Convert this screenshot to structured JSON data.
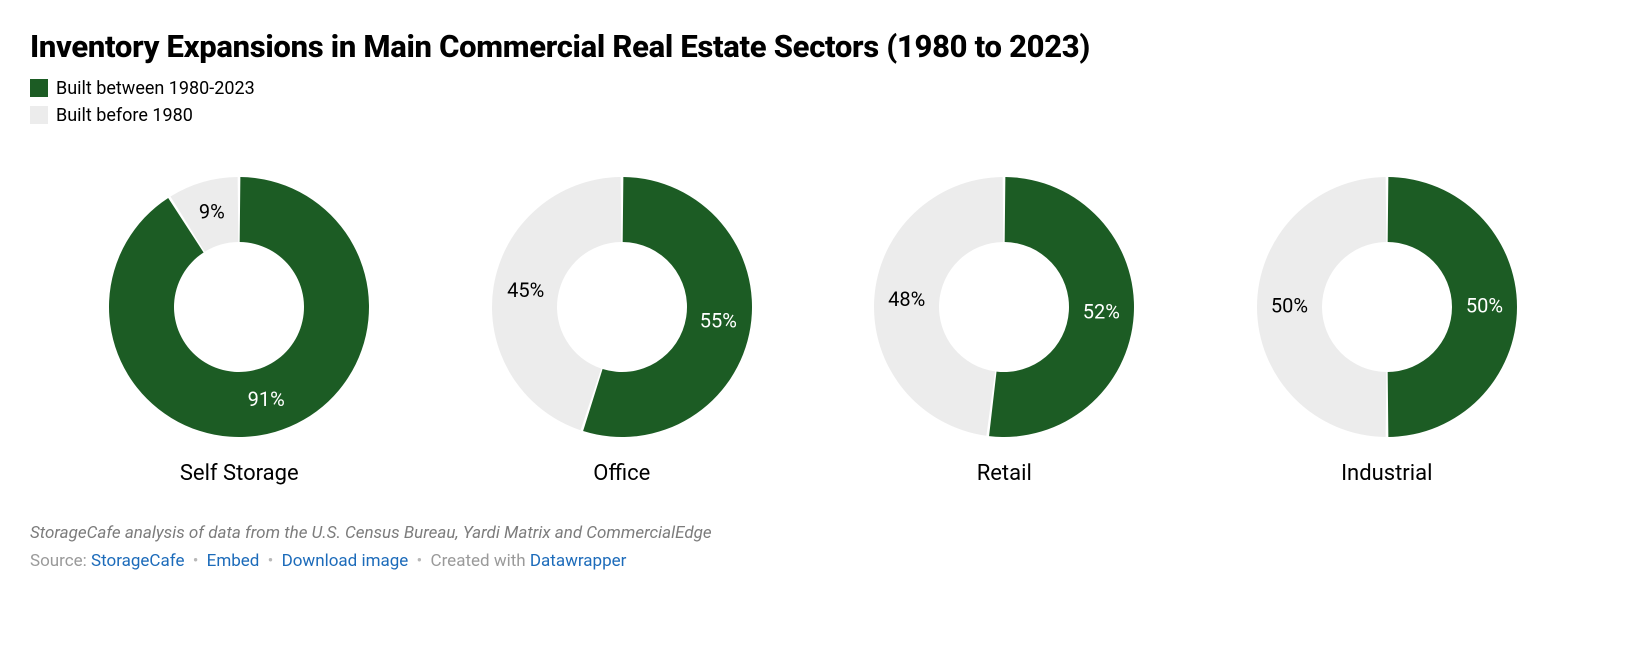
{
  "title": "Inventory Expansions in Main Commercial Real Estate Sectors (1980 to 2023)",
  "title_fontsize": 31,
  "title_weight": 800,
  "title_color": "#000000",
  "colors": {
    "primary": "#1c5c24",
    "secondary": "#ececec",
    "background": "#ffffff",
    "text": "#000000",
    "muted": "#9a9a9a",
    "link": "#1c6bba"
  },
  "legend": {
    "fontsize": 18,
    "items": [
      {
        "label": "Built between 1980-2023",
        "color": "#1c5c24"
      },
      {
        "label": "Built before 1980",
        "color": "#ececec"
      }
    ]
  },
  "chart": {
    "type": "donut-multiples",
    "donut_outer_radius": 130,
    "donut_inner_radius": 65,
    "donut_gap_deg": 1.2,
    "category_label_fontsize": 22,
    "slice_label_fontsize": 20,
    "slice_label_color_on_primary": "#ffffff",
    "slice_label_color_on_secondary": "#000000",
    "series": [
      {
        "name": "Self Storage",
        "values": [
          91,
          9
        ]
      },
      {
        "name": "Office",
        "values": [
          55,
          45
        ]
      },
      {
        "name": "Retail",
        "values": [
          52,
          48
        ]
      },
      {
        "name": "Industrial",
        "values": [
          50,
          50
        ]
      }
    ]
  },
  "footer": {
    "analysis_line": "StorageCafe analysis of data from the U.S. Census Bureau, Yardi Matrix and CommercialEdge",
    "credits": {
      "source_prefix": "Source: ",
      "source_link": "StorageCafe",
      "embed_link": "Embed",
      "download_link": "Download image",
      "created_prefix": "Created with ",
      "tool_link": "Datawrapper"
    }
  }
}
